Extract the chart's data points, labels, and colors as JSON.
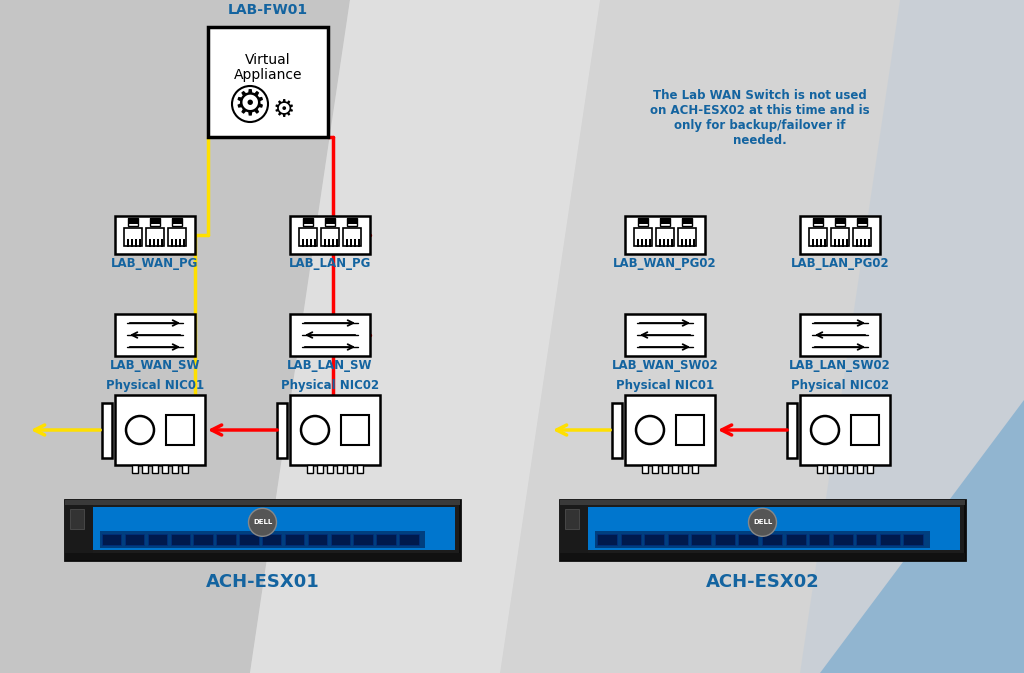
{
  "bg_top_left": "#c8c8c8",
  "bg_main": "#d4d4d4",
  "bg_diagonal_light": "#e8e8e8",
  "blue_text": "#1464a0",
  "title_note": "The Lab WAN Switch is not used\non ACH-ESX02 at this time and is\nonly for backup/failover if\nneeded.",
  "esx01_label": "ACH-ESX01",
  "esx02_label": "ACH-ESX02",
  "fw_label": "LAB-FW01",
  "fw_sublabel1": "Virtual",
  "fw_sublabel2": "Appliance",
  "left_pg_wan_label": "LAB_WAN_PG",
  "left_pg_lan_label": "LAB_LAN_PG",
  "left_sw_wan_label": "LAB_WAN_SW",
  "left_sw_lan_label": "LAB_LAN_SW",
  "left_nic01_label": "Physical NIC01",
  "left_nic02_label": "Physical NIC02",
  "right_pg_wan_label": "LAB_WAN_PG02",
  "right_pg_lan_label": "LAB_LAN_PG02",
  "right_sw_wan_label": "LAB_WAN_SW02",
  "right_sw_lan_label": "LAB_LAN_SW02",
  "right_nic01_label": "Physical NIC01",
  "right_nic02_label": "Physical NIC02",
  "yellow": "#FFE000",
  "red": "#FF0000",
  "black": "#000000",
  "white": "#FFFFFF",
  "dell_blue": "#0076CE",
  "dell_dark": "#1a1a1a",
  "dell_bezel": "#005baa"
}
